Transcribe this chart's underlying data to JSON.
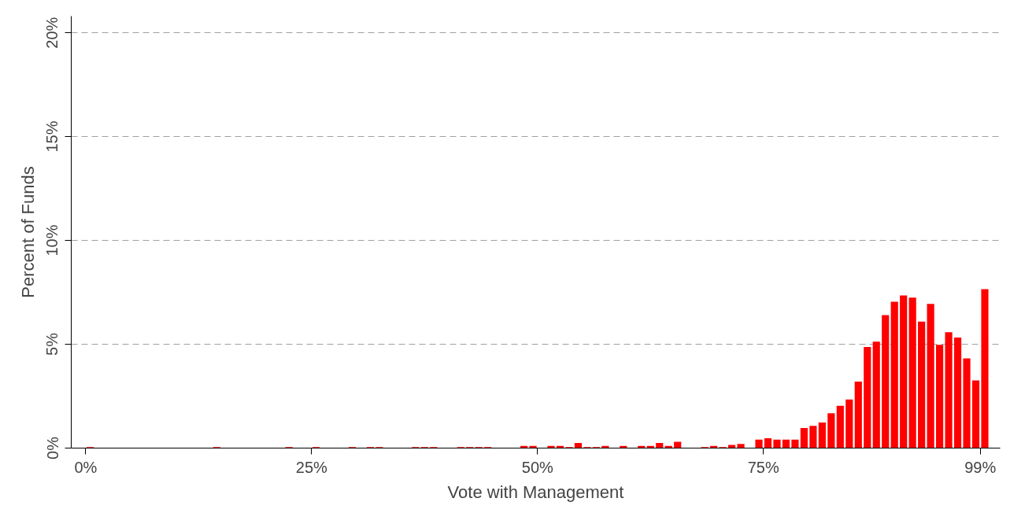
{
  "chart_data": {
    "type": "histogram",
    "xlabel": "Vote with Management",
    "ylabel": "Percent of Funds",
    "bins": [
      0,
      1,
      2,
      3,
      4,
      5,
      6,
      7,
      8,
      9,
      10,
      11,
      12,
      13,
      14,
      15,
      16,
      17,
      18,
      19,
      20,
      21,
      22,
      23,
      24,
      25,
      26,
      27,
      28,
      29,
      30,
      31,
      32,
      33,
      34,
      35,
      36,
      37,
      38,
      39,
      40,
      41,
      42,
      43,
      44,
      45,
      46,
      47,
      48,
      49,
      50,
      51,
      52,
      53,
      54,
      55,
      56,
      57,
      58,
      59,
      60,
      61,
      62,
      63,
      64,
      65,
      66,
      67,
      68,
      69,
      70,
      71,
      72,
      73,
      74,
      75,
      76,
      77,
      78,
      79,
      80,
      81,
      82,
      83,
      84,
      85,
      86,
      87,
      88,
      89,
      90,
      91,
      92,
      93,
      94,
      95,
      96,
      97,
      98,
      99,
      100
    ],
    "values": [
      0.05,
      0,
      0,
      0,
      0,
      0,
      0,
      0,
      0,
      0,
      0,
      0,
      0,
      0,
      0.05,
      0,
      0,
      0,
      0,
      0,
      0,
      0,
      0.05,
      0,
      0,
      0.05,
      0,
      0,
      0,
      0.05,
      0,
      0.05,
      0.05,
      0,
      0,
      0,
      0.05,
      0.05,
      0.05,
      0,
      0,
      0.05,
      0.05,
      0.05,
      0.05,
      0,
      0,
      0,
      0.1,
      0.1,
      0,
      0.1,
      0.1,
      0.05,
      0.25,
      0.05,
      0.05,
      0.1,
      0,
      0.1,
      0,
      0.1,
      0.1,
      0.25,
      0.1,
      0.3,
      0,
      0,
      0.05,
      0.1,
      0.05,
      0.15,
      0.2,
      0,
      0.41,
      0.47,
      0.41,
      0.41,
      0.41,
      0.97,
      1.07,
      1.23,
      1.68,
      2.04,
      2.34,
      3.2,
      4.87,
      5.12,
      6.4,
      7.05,
      7.35,
      7.25,
      6.09,
      6.94,
      4.97,
      5.58,
      5.32,
      4.32,
      3.26,
      7.65
    ],
    "color": "#ff0000",
    "xlim": [
      -1.6,
      101.2
    ],
    "xticks": [
      {
        "value": 0,
        "label": "0%"
      },
      {
        "value": 25,
        "label": "25%"
      },
      {
        "value": 50,
        "label": "50%"
      },
      {
        "value": 75,
        "label": "75%"
      },
      {
        "value": 99,
        "label": "99%"
      }
    ],
    "ylim": [
      0,
      20.8
    ],
    "yticks": [
      {
        "value": 0,
        "label": "0%"
      },
      {
        "value": 5,
        "label": "5%"
      },
      {
        "value": 10,
        "label": "10%"
      },
      {
        "value": 15,
        "label": "15%"
      },
      {
        "value": 20,
        "label": "20%"
      }
    ],
    "grid": "y"
  }
}
